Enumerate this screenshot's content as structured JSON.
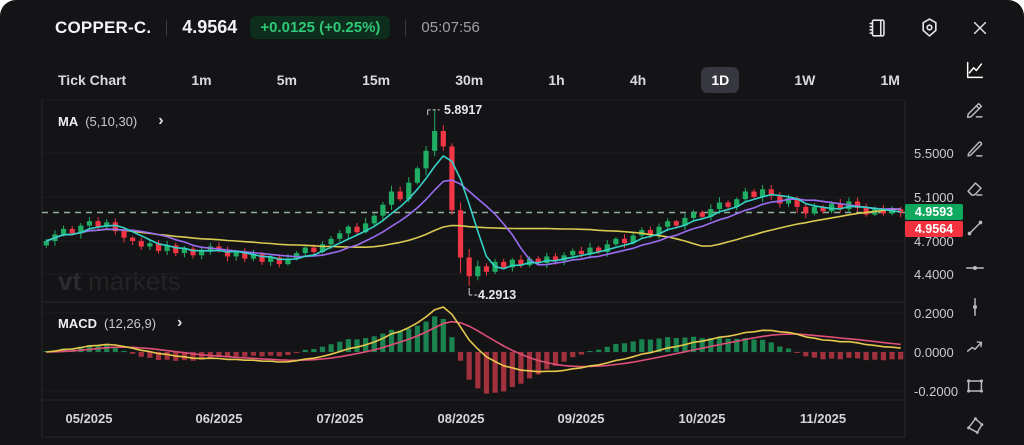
{
  "header": {
    "symbol": "COPPER-C.",
    "price": "4.9564",
    "change": "+0.0125 (+0.25%)",
    "time": "05:07:56"
  },
  "icons": {
    "chevron": "›"
  },
  "timeframes": {
    "items": [
      {
        "label": "Tick Chart"
      },
      {
        "label": "1m"
      },
      {
        "label": "5m"
      },
      {
        "label": "15m"
      },
      {
        "label": "30m"
      },
      {
        "label": "1h"
      },
      {
        "label": "4h"
      },
      {
        "label": "1D"
      },
      {
        "label": "1W"
      },
      {
        "label": "1M"
      }
    ],
    "active": "1D"
  },
  "indicators": {
    "ma": {
      "name": "MA",
      "params": "(5,10,30)"
    },
    "macd": {
      "name": "MACD",
      "params": "(12,26,9)"
    }
  },
  "price_axis": {
    "ticks": [
      "5.5000",
      "5.1000",
      "4.7000",
      "4.4000"
    ],
    "last_close_badge": "4.9593",
    "current_price_badge": "4.9564"
  },
  "macd_axis": {
    "ticks": [
      "0.2000",
      "0.0000",
      "-0.2000"
    ]
  },
  "x_axis": {
    "labels": [
      "05/2025",
      "06/2025",
      "07/2025",
      "08/2025",
      "09/2025",
      "10/2025",
      "11/2025"
    ]
  },
  "annotations": {
    "high": "5.8917",
    "low": "4.2913"
  },
  "watermark": {
    "bold": "vt",
    "rest": "markets"
  },
  "colors": {
    "bull": "#1fae63",
    "bear": "#f23645",
    "ma5": "#35d0c6",
    "ma10": "#9a6cf0",
    "ma30": "#d8ca52",
    "macd_dif": "#e6c84d",
    "macd_dea": "#df5078",
    "hist_pos": "#1b8f55",
    "hist_neg": "#b13442",
    "badge_green": "#0ea95c",
    "badge_red": "#f2333f",
    "change_badge_bg": "#0d2d1d",
    "change_badge_text": "#30c776",
    "last_close_line": "#8fae9b"
  },
  "chart_data": {
    "type": "candlestick",
    "symbol": "COPPER-C.",
    "timeframe": "1D",
    "title": "COPPER-C. 1D candlestick with MA(5,10,30) and MACD(12,26,9)",
    "x_months": [
      "05/2025",
      "06/2025",
      "07/2025",
      "08/2025",
      "09/2025",
      "10/2025",
      "11/2025"
    ],
    "month_indices": [
      5,
      20,
      34,
      48,
      62,
      76,
      90
    ],
    "open_seed": 4.66,
    "open_rule": "open equals previous close",
    "closes": [
      4.7,
      4.76,
      4.81,
      4.77,
      4.84,
      4.88,
      4.83,
      4.87,
      4.79,
      4.73,
      4.7,
      4.65,
      4.68,
      4.61,
      4.66,
      4.59,
      4.63,
      4.57,
      4.61,
      4.65,
      4.61,
      4.56,
      4.6,
      4.54,
      4.58,
      4.51,
      4.55,
      4.49,
      4.54,
      4.59,
      4.64,
      4.6,
      4.67,
      4.72,
      4.77,
      4.83,
      4.78,
      4.86,
      4.93,
      5.03,
      5.15,
      5.08,
      5.23,
      5.36,
      5.52,
      5.7,
      5.56,
      4.98,
      4.55,
      4.38,
      4.47,
      4.42,
      4.51,
      4.46,
      4.53,
      4.48,
      4.54,
      4.5,
      4.56,
      4.52,
      4.57,
      4.61,
      4.58,
      4.64,
      4.6,
      4.67,
      4.72,
      4.68,
      4.75,
      4.8,
      4.76,
      4.83,
      4.88,
      4.84,
      4.91,
      4.96,
      4.92,
      4.99,
      5.05,
      5.01,
      5.08,
      5.15,
      5.1,
      5.17,
      5.11,
      5.04,
      5.09,
      5.01,
      4.95,
      5.01,
      4.97,
      5.04,
      4.99,
      5.06,
      5.0,
      4.94,
      4.99,
      4.95,
      4.99,
      4.9564
    ],
    "ma_periods": [
      5,
      10,
      30
    ],
    "macd_params": [
      12,
      26,
      9
    ],
    "annotations": {
      "high": {
        "index": 45,
        "value": 5.8917
      },
      "low": {
        "index": 49,
        "value": 4.2913
      }
    },
    "last_close_line": 4.9593,
    "current_price": 4.9564,
    "price_ticks": [
      5.5,
      5.1,
      4.7,
      4.4
    ],
    "macd_ticks": [
      0.2,
      0.0,
      -0.2
    ],
    "ylim_price": [
      4.25,
      5.95
    ],
    "ylim_macd": [
      -0.28,
      0.28
    ],
    "grid": "horizontal ticks only, right-side axis, legend none"
  }
}
